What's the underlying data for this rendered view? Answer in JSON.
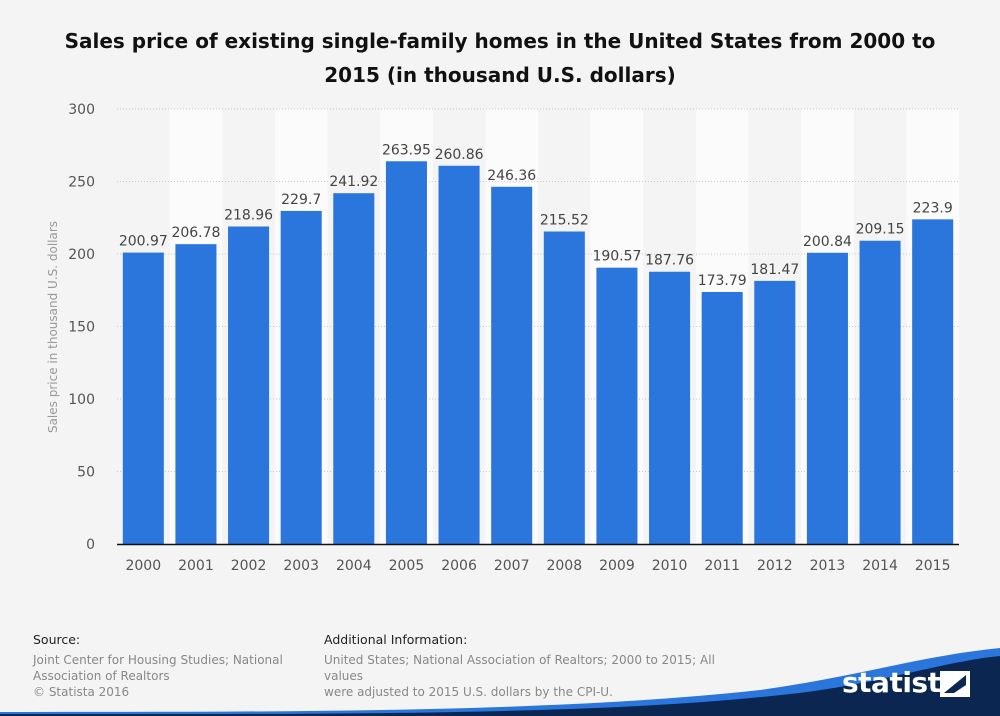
{
  "chart_data": {
    "type": "bar",
    "title": "Sales price of existing single-family homes in the United States from 2000 to 2015 (in thousand U.S. dollars)",
    "title_lines": [
      "Sales price of existing single-family homes in the United States from 2000 to",
      "2015 (in thousand U.S. dollars)"
    ],
    "xlabel": "",
    "ylabel": "Sales price in thousand U.S. dollars",
    "categories": [
      "2000",
      "2001",
      "2002",
      "2003",
      "2004",
      "2005",
      "2006",
      "2007",
      "2008",
      "2009",
      "2010",
      "2011",
      "2012",
      "2013",
      "2014",
      "2015"
    ],
    "values": [
      200.97,
      206.78,
      218.96,
      229.7,
      241.92,
      263.95,
      260.86,
      246.36,
      215.52,
      190.57,
      187.76,
      173.79,
      181.47,
      200.84,
      209.15,
      223.9
    ],
    "value_labels": [
      "200.97",
      "206.78",
      "218.96",
      "229.7",
      "241.92",
      "263.95",
      "260.86",
      "246.36",
      "215.52",
      "190.57",
      "187.76",
      "173.79",
      "181.47",
      "200.84",
      "209.15",
      "223.9"
    ],
    "ylim": [
      0,
      300
    ],
    "yticks": [
      0,
      50,
      100,
      150,
      200,
      250,
      300
    ],
    "grid": true,
    "bar_color": "#2a76dd"
  },
  "footer": {
    "source_header": "Source:",
    "source_lines": [
      "Joint Center for Housing Studies; National",
      "Association of Realtors",
      "© Statista 2016"
    ],
    "additional_header": "Additional Information:",
    "additional_lines": [
      "United States; National Association of Realtors; 2000 to 2015; All values",
      "were adjusted to 2015 U.S. dollars by the CPI-U."
    ]
  },
  "brand": {
    "name": "statista",
    "color": "#0b2650"
  }
}
